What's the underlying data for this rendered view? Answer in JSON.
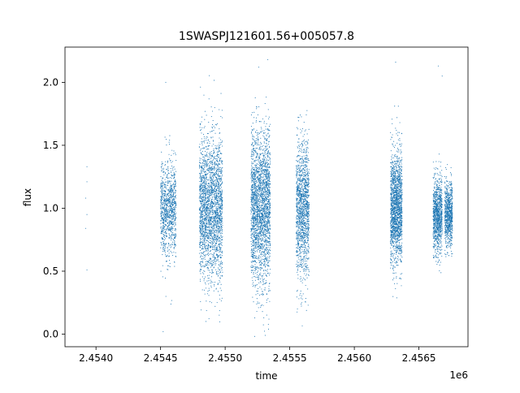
{
  "chart_data": {
    "type": "scatter",
    "title": "1SWASPJ121601.56+005057.8",
    "xlabel": "time",
    "ylabel": "flux",
    "x_offset_label": "1e6",
    "xlim": [
      2.45376,
      2.45688
    ],
    "ylim": [
      -0.1,
      2.28
    ],
    "x_ticks": [
      2.454,
      2.4545,
      2.455,
      2.4555,
      2.456,
      2.4565
    ],
    "x_tick_labels": [
      "2.4540",
      "2.4545",
      "2.4550",
      "2.4555",
      "2.4560",
      "2.4565"
    ],
    "y_ticks": [
      0.0,
      0.5,
      1.0,
      1.5,
      2.0
    ],
    "y_tick_labels": [
      "0.0",
      "0.5",
      "1.0",
      "1.5",
      "2.0"
    ],
    "grid": false,
    "marker_color": "#1f77b4",
    "isolated_points": [
      {
        "x": 2.45393,
        "y": 1.33
      },
      {
        "x": 2.45393,
        "y": 1.21
      },
      {
        "x": 2.45392,
        "y": 1.08
      },
      {
        "x": 2.45393,
        "y": 0.95
      },
      {
        "x": 2.45392,
        "y": 0.84
      },
      {
        "x": 2.45393,
        "y": 0.51
      },
      {
        "x": 2.45454,
        "y": 2.0
      },
      {
        "x": 2.45526,
        "y": 2.12
      },
      {
        "x": 2.45533,
        "y": 2.18
      },
      {
        "x": 2.45632,
        "y": 2.16
      },
      {
        "x": 2.45665,
        "y": 2.13
      },
      {
        "x": 2.45668,
        "y": 2.05
      },
      {
        "x": 2.45452,
        "y": 0.02
      },
      {
        "x": 2.45531,
        "y": -0.01
      }
    ],
    "clusters": [
      {
        "x_start": 2.4545,
        "x_end": 2.45462,
        "y_center": 1.0,
        "y_spread": 0.55,
        "n": 1000
      },
      {
        "x_start": 2.4548,
        "x_end": 2.45498,
        "y_center": 1.0,
        "y_spread": 0.85,
        "n": 2400
      },
      {
        "x_start": 2.4552,
        "x_end": 2.45535,
        "y_center": 1.0,
        "y_spread": 0.9,
        "n": 2400
      },
      {
        "x_start": 2.45555,
        "x_end": 2.45565,
        "y_center": 1.0,
        "y_spread": 0.8,
        "n": 1400
      },
      {
        "x_start": 2.45628,
        "x_end": 2.45637,
        "y_center": 1.0,
        "y_spread": 0.65,
        "n": 1700
      },
      {
        "x_start": 2.45661,
        "x_end": 2.45668,
        "y_center": 0.95,
        "y_spread": 0.45,
        "n": 1000
      },
      {
        "x_start": 2.4567,
        "x_end": 2.45676,
        "y_center": 0.95,
        "y_spread": 0.4,
        "n": 800
      }
    ]
  }
}
